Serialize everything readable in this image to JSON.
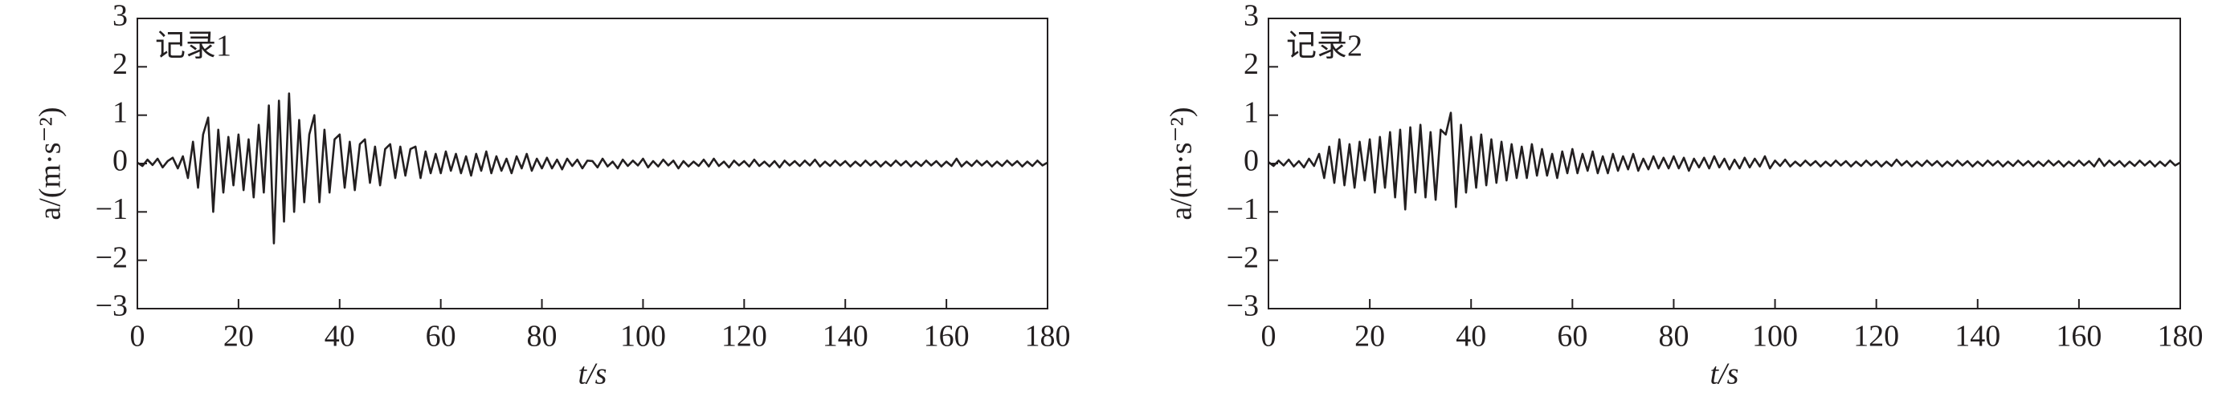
{
  "chart_data": [
    {
      "type": "line",
      "annotation": "记录1",
      "xlabel": "t/s",
      "ylabel": "a/(m·s⁻²)",
      "color": "#231f20",
      "xlim": [
        0,
        180
      ],
      "xticks": [
        0,
        20,
        40,
        60,
        80,
        100,
        120,
        140,
        160,
        180
      ],
      "ylim": [
        -3,
        3
      ],
      "yticks": [
        {
          "value": -3,
          "label": "−3"
        },
        {
          "value": -2,
          "label": "−2"
        },
        {
          "value": -1,
          "label": "−1"
        },
        0,
        1,
        2,
        3
      ],
      "x": [
        0,
        1,
        2,
        3,
        4,
        5,
        6,
        7,
        8,
        9,
        10,
        11,
        12,
        13,
        14,
        15,
        16,
        17,
        18,
        19,
        20,
        21,
        22,
        23,
        24,
        25,
        26,
        27,
        28,
        29,
        30,
        31,
        32,
        33,
        34,
        35,
        36,
        37,
        38,
        39,
        40,
        41,
        42,
        43,
        44,
        45,
        46,
        47,
        48,
        49,
        50,
        51,
        52,
        53,
        54,
        55,
        56,
        57,
        58,
        59,
        60,
        61,
        62,
        63,
        64,
        65,
        66,
        67,
        68,
        69,
        70,
        71,
        72,
        73,
        74,
        75,
        76,
        77,
        78,
        79,
        80,
        81,
        82,
        83,
        84,
        85,
        86,
        87,
        88,
        89,
        90,
        91,
        92,
        93,
        94,
        95,
        96,
        97,
        98,
        99,
        100,
        101,
        102,
        103,
        104,
        105,
        106,
        107,
        108,
        109,
        110,
        111,
        112,
        113,
        114,
        115,
        116,
        117,
        118,
        119,
        120,
        121,
        122,
        123,
        124,
        125,
        126,
        127,
        128,
        129,
        130,
        131,
        132,
        133,
        134,
        135,
        136,
        137,
        138,
        139,
        140,
        141,
        142,
        143,
        144,
        145,
        146,
        147,
        148,
        149,
        150,
        151,
        152,
        153,
        154,
        155,
        156,
        157,
        158,
        159,
        160,
        161,
        162,
        163,
        164,
        165,
        166,
        167,
        168,
        169,
        170,
        171,
        172,
        173,
        174,
        175,
        176,
        177,
        178,
        179,
        180
      ],
      "values": [
        0.02,
        -0.05,
        0.08,
        -0.03,
        0.1,
        -0.08,
        0.05,
        0.12,
        -0.1,
        0.15,
        -0.3,
        0.45,
        -0.5,
        0.6,
        0.95,
        -1.0,
        0.7,
        -0.6,
        0.55,
        -0.45,
        0.6,
        -0.55,
        0.5,
        -0.7,
        0.8,
        -0.6,
        1.2,
        -1.65,
        1.3,
        -1.2,
        1.45,
        -1.0,
        0.9,
        -0.8,
        0.6,
        1.0,
        -0.8,
        0.7,
        -0.6,
        0.5,
        0.6,
        -0.5,
        0.45,
        -0.55,
        0.4,
        0.5,
        -0.4,
        0.35,
        -0.45,
        0.3,
        0.4,
        -0.3,
        0.35,
        -0.25,
        0.3,
        0.35,
        -0.3,
        0.25,
        -0.2,
        0.2,
        -0.2,
        0.25,
        -0.15,
        0.2,
        -0.2,
        0.15,
        -0.25,
        0.2,
        -0.15,
        0.25,
        -0.2,
        0.15,
        -0.15,
        0.1,
        -0.2,
        0.15,
        -0.1,
        0.2,
        -0.15,
        0.1,
        -0.1,
        0.12,
        -0.1,
        0.08,
        -0.12,
        0.1,
        -0.05,
        0.08,
        -0.1,
        0.06,
        0.05,
        -0.08,
        0.1,
        -0.06,
        0.04,
        -0.1,
        0.08,
        -0.05,
        0.06,
        -0.04,
        0.1,
        -0.08,
        0.05,
        -0.06,
        0.08,
        -0.04,
        0.06,
        -0.1,
        0.05,
        -0.06,
        0.04,
        -0.05,
        0.08,
        -0.06,
        0.1,
        -0.05,
        0.04,
        -0.08,
        0.06,
        -0.04,
        0.05,
        -0.06,
        0.08,
        -0.05,
        0.04,
        -0.06,
        0.05,
        -0.08,
        0.06,
        -0.04,
        0.05,
        -0.05,
        0.06,
        -0.04,
        0.08,
        -0.06,
        0.04,
        -0.05,
        0.06,
        -0.04,
        0.05,
        -0.06,
        0.04,
        -0.05,
        0.06,
        -0.04,
        0.05,
        -0.06,
        0.04,
        -0.05,
        0.06,
        -0.04,
        0.05,
        -0.06,
        0.04,
        -0.05,
        0.06,
        -0.04,
        0.05,
        -0.06,
        0.04,
        -0.05,
        0.1,
        -0.06,
        0.04,
        -0.05,
        0.06,
        -0.04,
        0.05,
        -0.06,
        0.04,
        -0.05,
        0.06,
        -0.04,
        0.05,
        -0.06,
        0.04,
        -0.05,
        0.06,
        -0.04,
        0.02
      ]
    },
    {
      "type": "line",
      "annotation": "记录2",
      "xlabel": "t/s",
      "ylabel": "a/(m·s⁻²)",
      "color": "#231f20",
      "xlim": [
        0,
        180
      ],
      "xticks": [
        0,
        20,
        40,
        60,
        80,
        100,
        120,
        140,
        160,
        180
      ],
      "ylim": [
        -3,
        3
      ],
      "yticks": [
        {
          "value": -3,
          "label": "−3"
        },
        {
          "value": -2,
          "label": "−2"
        },
        {
          "value": -1,
          "label": "−1"
        },
        0,
        1,
        2,
        3
      ],
      "x": [
        0,
        1,
        2,
        3,
        4,
        5,
        6,
        7,
        8,
        9,
        10,
        11,
        12,
        13,
        14,
        15,
        16,
        17,
        18,
        19,
        20,
        21,
        22,
        23,
        24,
        25,
        26,
        27,
        28,
        29,
        30,
        31,
        32,
        33,
        34,
        35,
        36,
        37,
        38,
        39,
        40,
        41,
        42,
        43,
        44,
        45,
        46,
        47,
        48,
        49,
        50,
        51,
        52,
        53,
        54,
        55,
        56,
        57,
        58,
        59,
        60,
        61,
        62,
        63,
        64,
        65,
        66,
        67,
        68,
        69,
        70,
        71,
        72,
        73,
        74,
        75,
        76,
        77,
        78,
        79,
        80,
        81,
        82,
        83,
        84,
        85,
        86,
        87,
        88,
        89,
        90,
        91,
        92,
        93,
        94,
        95,
        96,
        97,
        98,
        99,
        100,
        101,
        102,
        103,
        104,
        105,
        106,
        107,
        108,
        109,
        110,
        111,
        112,
        113,
        114,
        115,
        116,
        117,
        118,
        119,
        120,
        121,
        122,
        123,
        124,
        125,
        126,
        127,
        128,
        129,
        130,
        131,
        132,
        133,
        134,
        135,
        136,
        137,
        138,
        139,
        140,
        141,
        142,
        143,
        144,
        145,
        146,
        147,
        148,
        149,
        150,
        151,
        152,
        153,
        154,
        155,
        156,
        157,
        158,
        159,
        160,
        161,
        162,
        163,
        164,
        165,
        166,
        167,
        168,
        169,
        170,
        171,
        172,
        173,
        174,
        175,
        176,
        177,
        178,
        179,
        180
      ],
      "values": [
        0.03,
        -0.05,
        0.06,
        -0.04,
        0.08,
        -0.06,
        0.05,
        -0.08,
        0.1,
        -0.05,
        0.2,
        -0.3,
        0.35,
        -0.4,
        0.5,
        -0.45,
        0.4,
        -0.5,
        0.45,
        -0.35,
        0.5,
        -0.6,
        0.55,
        -0.5,
        0.65,
        -0.7,
        0.7,
        -0.95,
        0.75,
        -0.6,
        0.8,
        -0.7,
        0.65,
        -0.75,
        0.7,
        0.6,
        1.05,
        -0.9,
        0.8,
        -0.6,
        0.55,
        -0.5,
        0.6,
        -0.45,
        0.5,
        -0.4,
        0.45,
        -0.35,
        0.4,
        -0.3,
        0.35,
        -0.3,
        0.4,
        -0.25,
        0.3,
        -0.25,
        0.2,
        -0.3,
        0.25,
        -0.2,
        0.3,
        -0.2,
        0.2,
        -0.15,
        0.25,
        -0.2,
        0.15,
        -0.2,
        0.2,
        -0.15,
        0.15,
        -0.12,
        0.2,
        -0.15,
        0.1,
        -0.12,
        0.15,
        -0.1,
        0.12,
        -0.1,
        0.15,
        -0.1,
        0.12,
        -0.15,
        0.1,
        -0.08,
        0.12,
        -0.1,
        0.15,
        -0.08,
        0.1,
        -0.12,
        0.08,
        -0.1,
        0.12,
        -0.08,
        0.1,
        -0.06,
        0.15,
        -0.1,
        0.06,
        -0.05,
        0.08,
        -0.06,
        0.04,
        -0.05,
        0.06,
        -0.04,
        0.05,
        -0.06,
        0.04,
        -0.05,
        0.06,
        -0.04,
        0.05,
        -0.06,
        0.04,
        -0.05,
        0.06,
        -0.04,
        0.05,
        -0.06,
        0.04,
        -0.05,
        0.08,
        -0.04,
        0.05,
        -0.06,
        0.04,
        -0.05,
        0.06,
        -0.04,
        0.05,
        -0.06,
        0.04,
        -0.05,
        0.06,
        -0.04,
        0.05,
        -0.06,
        0.04,
        -0.05,
        0.06,
        -0.04,
        0.05,
        -0.06,
        0.04,
        -0.05,
        0.06,
        -0.04,
        0.05,
        -0.06,
        0.04,
        -0.05,
        0.06,
        -0.04,
        0.05,
        -0.06,
        0.04,
        -0.05,
        0.06,
        -0.04,
        0.05,
        -0.06,
        0.1,
        -0.05,
        0.06,
        -0.04,
        0.05,
        -0.06,
        0.04,
        -0.05,
        0.06,
        -0.04,
        0.05,
        -0.06,
        0.04,
        -0.05,
        0.06,
        -0.04,
        0.02
      ]
    }
  ]
}
